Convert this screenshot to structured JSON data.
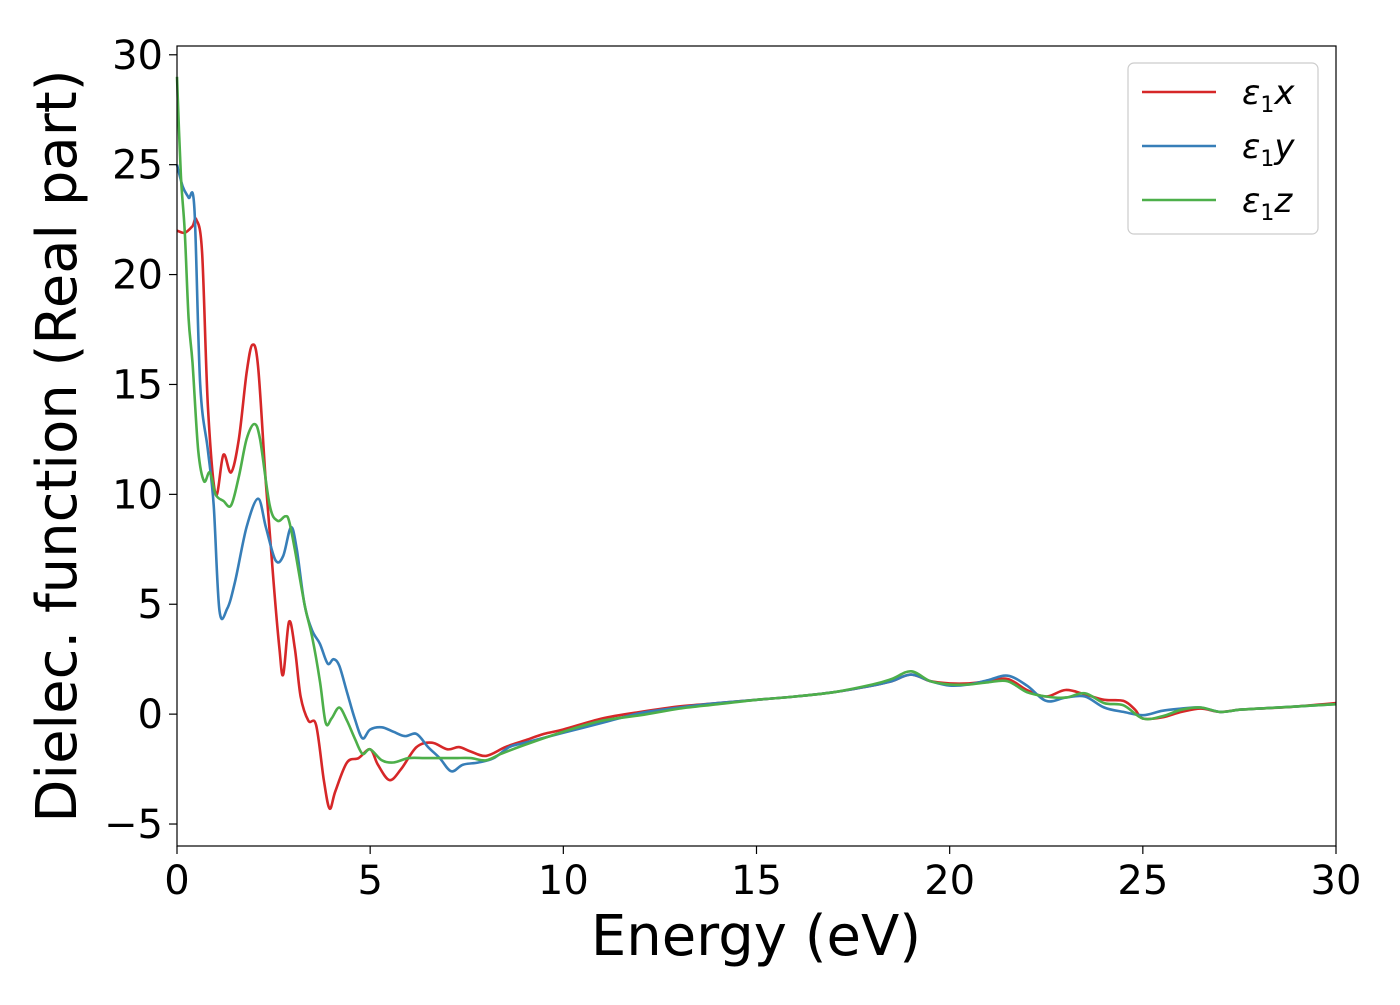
{
  "chart_data": {
    "type": "line",
    "title": "",
    "xlabel": "Energy (eV)",
    "ylabel": "Dielec. function (Real part)",
    "xlim": [
      0,
      30
    ],
    "ylim": [
      -6,
      30.4
    ],
    "xticks": [
      0,
      5,
      10,
      15,
      20,
      25,
      30
    ],
    "xtick_labels": [
      "0",
      "5",
      "10",
      "15",
      "20",
      "25",
      "30"
    ],
    "yticks": [
      -5,
      0,
      5,
      10,
      15,
      20,
      25,
      30
    ],
    "ytick_labels": [
      "−5",
      "0",
      "5",
      "10",
      "15",
      "20",
      "25",
      "30"
    ],
    "grid": false,
    "legend_position": "top-right",
    "series": [
      {
        "name": "ε1x",
        "label_main": "ε",
        "label_sub": "1",
        "label_tail": "x",
        "color": "#d62728",
        "x": [
          0,
          0.2,
          0.4,
          0.5,
          0.65,
          0.8,
          1.0,
          1.2,
          1.4,
          1.6,
          1.8,
          1.95,
          2.1,
          2.3,
          2.5,
          2.65,
          2.75,
          2.9,
          3.05,
          3.2,
          3.4,
          3.6,
          3.8,
          3.95,
          4.1,
          4.4,
          4.7,
          5.0,
          5.2,
          5.5,
          5.8,
          6.2,
          6.6,
          7.0,
          7.3,
          7.6,
          8.0,
          8.5,
          9.0,
          9.5,
          10,
          11,
          12,
          13,
          14,
          15,
          16,
          17,
          18,
          18.5,
          19,
          19.5,
          20,
          20.5,
          21,
          21.5,
          22,
          22.5,
          23,
          23.5,
          24,
          24.5,
          24.8,
          25,
          25.5,
          26,
          26.5,
          27,
          27.5,
          28,
          29,
          30
        ],
        "y": [
          22.0,
          21.9,
          22.2,
          22.5,
          21.0,
          14.0,
          10.0,
          11.8,
          11.0,
          12.5,
          15.5,
          16.8,
          15.8,
          10.5,
          6.0,
          3.0,
          1.8,
          4.2,
          3.0,
          0.8,
          -0.3,
          -0.5,
          -3.0,
          -4.3,
          -3.5,
          -2.2,
          -2.0,
          -1.6,
          -2.3,
          -3.0,
          -2.5,
          -1.5,
          -1.3,
          -1.6,
          -1.5,
          -1.7,
          -1.9,
          -1.5,
          -1.2,
          -0.9,
          -0.7,
          -0.2,
          0.1,
          0.35,
          0.5,
          0.65,
          0.8,
          1.0,
          1.3,
          1.5,
          1.8,
          1.5,
          1.4,
          1.4,
          1.5,
          1.6,
          1.1,
          0.8,
          1.1,
          0.9,
          0.65,
          0.6,
          0.2,
          -0.2,
          -0.15,
          0.1,
          0.25,
          0.1,
          0.2,
          0.25,
          0.35,
          0.5
        ]
      },
      {
        "name": "ε1y",
        "label_main": "ε",
        "label_sub": "1",
        "label_tail": "y",
        "color": "#377eb8",
        "x": [
          0,
          0.15,
          0.3,
          0.45,
          0.6,
          0.8,
          0.95,
          1.1,
          1.3,
          1.5,
          1.8,
          2.1,
          2.3,
          2.55,
          2.75,
          2.95,
          3.1,
          3.3,
          3.5,
          3.7,
          3.9,
          4.05,
          4.2,
          4.4,
          4.6,
          4.8,
          5.0,
          5.3,
          5.6,
          5.9,
          6.2,
          6.5,
          6.8,
          7.1,
          7.4,
          7.8,
          8.2,
          8.6,
          9.0,
          10,
          11,
          12,
          13,
          14,
          15,
          16,
          17,
          18,
          18.5,
          19,
          19.5,
          20,
          20.5,
          21,
          21.5,
          22,
          22.5,
          23,
          23.5,
          24,
          24.5,
          25,
          25.5,
          26,
          26.5,
          27,
          27.5,
          28,
          29,
          30
        ],
        "y": [
          25.0,
          24.0,
          23.5,
          23.0,
          15.0,
          12.0,
          9.5,
          4.7,
          4.8,
          6.0,
          8.5,
          9.8,
          8.5,
          7.0,
          7.2,
          8.5,
          7.5,
          5.0,
          3.8,
          3.2,
          2.3,
          2.5,
          2.2,
          1.0,
          -0.2,
          -1.1,
          -0.7,
          -0.6,
          -0.8,
          -1.0,
          -0.9,
          -1.5,
          -2.0,
          -2.6,
          -2.3,
          -2.2,
          -2.0,
          -1.5,
          -1.3,
          -0.85,
          -0.4,
          0.05,
          0.3,
          0.5,
          0.65,
          0.8,
          1.0,
          1.3,
          1.5,
          1.8,
          1.5,
          1.3,
          1.35,
          1.55,
          1.75,
          1.3,
          0.6,
          0.75,
          0.8,
          0.3,
          0.1,
          -0.05,
          0.15,
          0.25,
          0.3,
          0.1,
          0.2,
          0.25,
          0.35,
          0.45
        ]
      },
      {
        "name": "ε1z",
        "label_main": "ε",
        "label_sub": "1",
        "label_tail": "z",
        "color": "#4daf4a",
        "x": [
          0,
          0.1,
          0.2,
          0.3,
          0.4,
          0.55,
          0.7,
          0.85,
          1.0,
          1.2,
          1.4,
          1.6,
          1.8,
          2.0,
          2.15,
          2.4,
          2.6,
          2.8,
          2.9,
          3.05,
          3.3,
          3.5,
          3.7,
          3.85,
          4.0,
          4.2,
          4.4,
          4.6,
          4.8,
          5.0,
          5.3,
          5.6,
          6.0,
          6.4,
          6.8,
          7.2,
          7.6,
          8.0,
          8.4,
          9.0,
          10,
          11,
          12,
          13,
          14,
          15,
          16,
          17,
          18,
          18.5,
          19,
          19.5,
          20,
          20.5,
          21,
          21.5,
          22,
          22.5,
          23,
          23.5,
          24,
          24.5,
          25,
          25.5,
          26,
          26.5,
          27,
          27.5,
          28,
          29,
          30
        ],
        "y": [
          29.0,
          24.5,
          22.0,
          18.0,
          16.0,
          12.0,
          10.6,
          11.0,
          10.0,
          9.7,
          9.5,
          10.8,
          12.5,
          13.2,
          12.5,
          9.5,
          8.8,
          9.0,
          8.8,
          7.5,
          5.0,
          3.5,
          1.5,
          -0.4,
          -0.2,
          0.3,
          -0.3,
          -1.1,
          -1.8,
          -1.6,
          -2.1,
          -2.2,
          -2.0,
          -2.0,
          -2.0,
          -2.0,
          -2.0,
          -2.1,
          -1.8,
          -1.4,
          -0.8,
          -0.3,
          -0.05,
          0.25,
          0.45,
          0.65,
          0.8,
          1.0,
          1.35,
          1.6,
          1.95,
          1.5,
          1.35,
          1.35,
          1.45,
          1.5,
          1.0,
          0.8,
          0.75,
          0.95,
          0.5,
          0.4,
          -0.2,
          -0.1,
          0.2,
          0.3,
          0.1,
          0.2,
          0.25,
          0.35,
          0.45
        ]
      }
    ]
  }
}
